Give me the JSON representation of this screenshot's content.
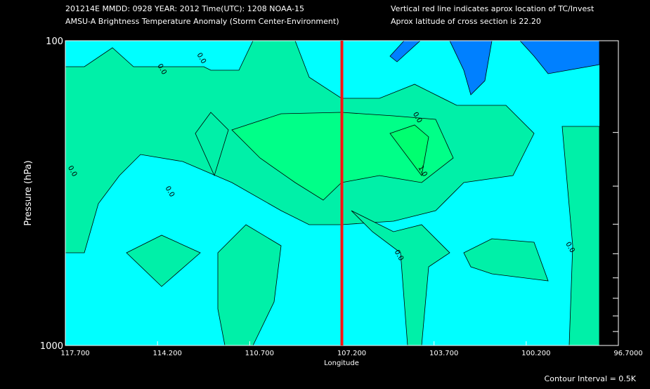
{
  "chart_data": {
    "type": "contour",
    "header_left": [
      "201214E  MMDD: 0928 YEAR: 2012 Time(UTC): 1208 NOAA-15",
      "AMSU-A Brightness Temperature Anomaly (Storm Center-Environment)"
    ],
    "header_right": [
      "Vertical red line indicates aprox location of TC/Invest",
      "Aprox latitude of cross section is 22.20"
    ],
    "x_label": "Longitude",
    "y_label": "Pressure (hPa)",
    "footer": "Contour Interval = 0.5K",
    "xlim": [
      117.7,
      96.7
    ],
    "xticks": [
      {
        "value": 117.7,
        "label": "117.700"
      },
      {
        "value": 114.2,
        "label": "114.200"
      },
      {
        "value": 110.7,
        "label": "110.700"
      },
      {
        "value": 107.2,
        "label": "107.200"
      },
      {
        "value": 103.7,
        "label": "103.700"
      },
      {
        "value": 100.2,
        "label": "100.200"
      },
      {
        "value": 96.7,
        "label": "96.7000"
      }
    ],
    "ylim": [
      1000,
      100
    ],
    "log_scale_y": true,
    "yticks": [
      100,
      1000
    ],
    "y_minor_ticks": [
      200,
      300,
      400,
      500,
      600,
      700,
      800,
      900
    ],
    "marker_x": 107.2,
    "marker_color": "#ff1010",
    "contour_labels": [
      {
        "label": "0.0",
        "lon": 114.1,
        "pressure": 125
      },
      {
        "label": "0.0",
        "lon": 112.6,
        "pressure": 115
      },
      {
        "label": "0.0",
        "lon": 104.4,
        "pressure": 180
      },
      {
        "label": "0.0",
        "lon": 117.5,
        "pressure": 270
      },
      {
        "label": "0.0",
        "lon": 113.8,
        "pressure": 315
      },
      {
        "label": "1.0",
        "lon": 104.2,
        "pressure": 270
      },
      {
        "label": "0.0",
        "lon": 105.1,
        "pressure": 510
      },
      {
        "label": "0.0",
        "lon": 98.6,
        "pressure": 480
      }
    ]
  }
}
